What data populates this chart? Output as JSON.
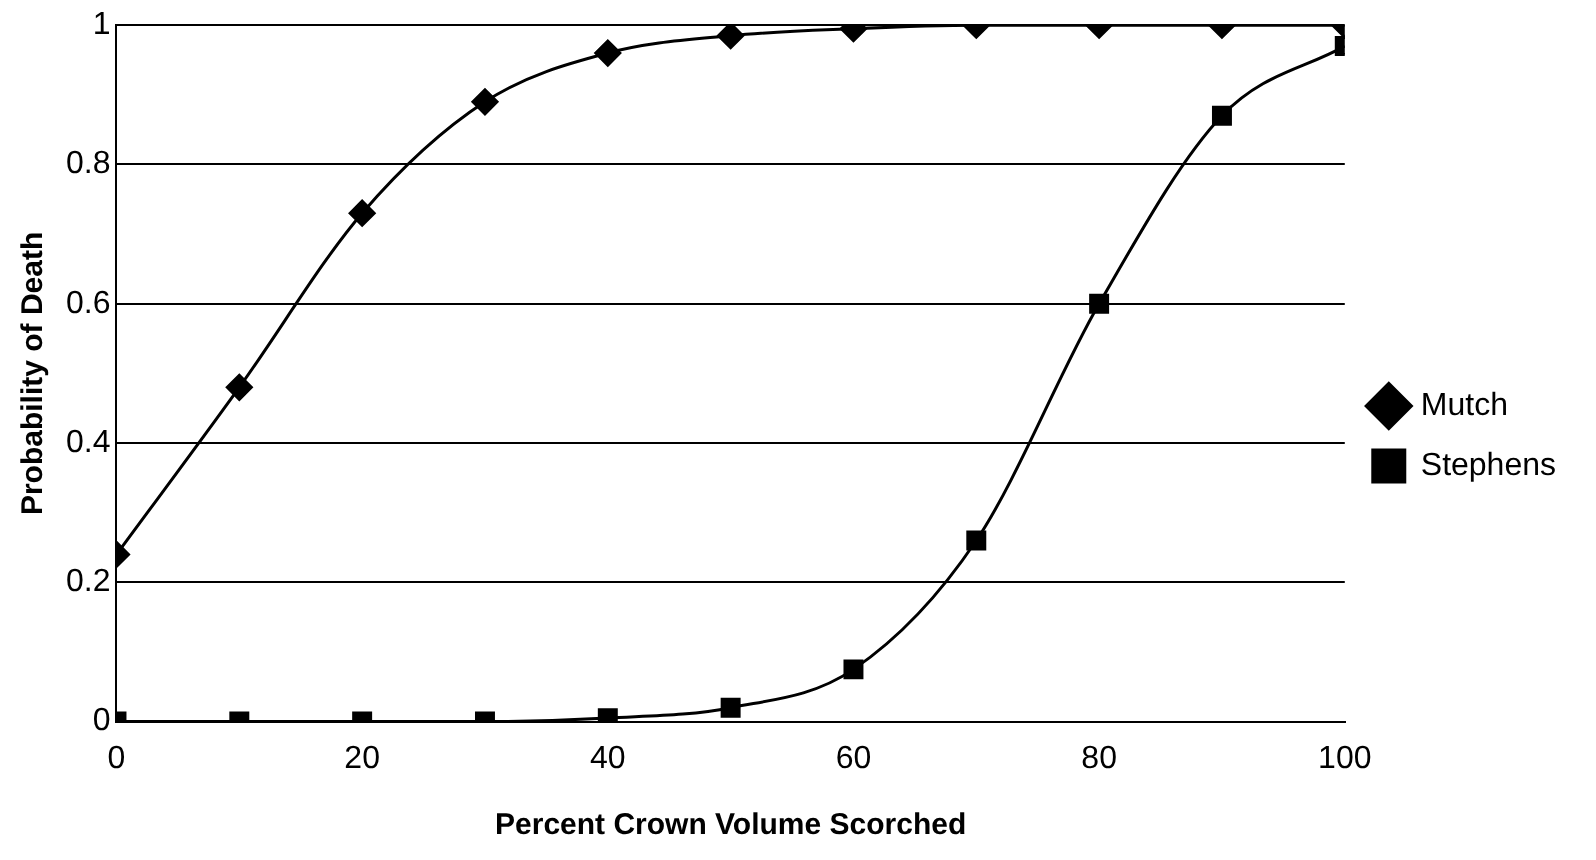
{
  "chart_data": {
    "type": "line",
    "xlabel": "Percent Crown Volume Scorched",
    "ylabel": "Probability of Death",
    "x": [
      0,
      10,
      20,
      30,
      40,
      50,
      60,
      70,
      80,
      90,
      100
    ],
    "series": [
      {
        "name": "Mutch",
        "color": "#000000",
        "marker": "diamond",
        "values": [
          0.24,
          0.48,
          0.73,
          0.89,
          0.96,
          0.985,
          0.995,
          1,
          1,
          1,
          1
        ]
      },
      {
        "name": "Stephens",
        "color": "#000000",
        "marker": "square",
        "values": [
          0,
          0,
          0,
          0,
          0.005,
          0.02,
          0.075,
          0.26,
          0.6,
          0.87,
          0.97
        ]
      }
    ],
    "xlim": [
      0,
      100
    ],
    "xticks": [
      0,
      20,
      40,
      60,
      80,
      100
    ],
    "ylim": [
      0,
      1
    ],
    "yticks": [
      0,
      0.2,
      0.4,
      0.6,
      0.8,
      1
    ],
    "grid": "y",
    "legend": "right",
    "line_style": "solid"
  }
}
